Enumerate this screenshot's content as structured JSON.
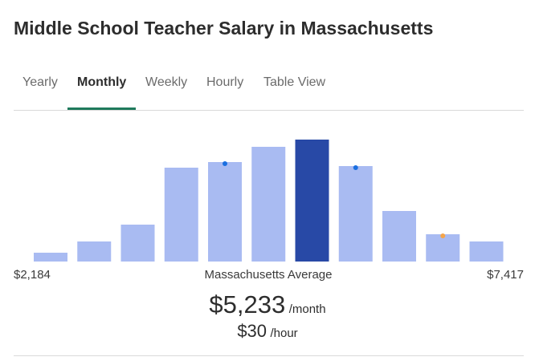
{
  "title": "Middle School Teacher Salary in Massachusetts",
  "tabs": [
    "Yearly",
    "Monthly",
    "Weekly",
    "Hourly",
    "Table View"
  ],
  "active_tab": "Monthly",
  "chart_data": {
    "type": "bar",
    "categories": [
      null,
      null,
      null,
      null,
      null,
      null,
      null,
      null,
      null,
      null,
      null
    ],
    "values": [
      11,
      25,
      46,
      117,
      124,
      143,
      152,
      119,
      63,
      34,
      25
    ],
    "color": "#a9bbf2",
    "highlight_color": "#2849a6",
    "highlight": 6,
    "min_label": "$2,184",
    "center_label": "Massachusetts Average",
    "max_label": "$7,417"
  },
  "average": {
    "monthly": "$5,233",
    "monthly_unit": "/month",
    "hourly": "$30",
    "hourly_unit": "/hour"
  }
}
